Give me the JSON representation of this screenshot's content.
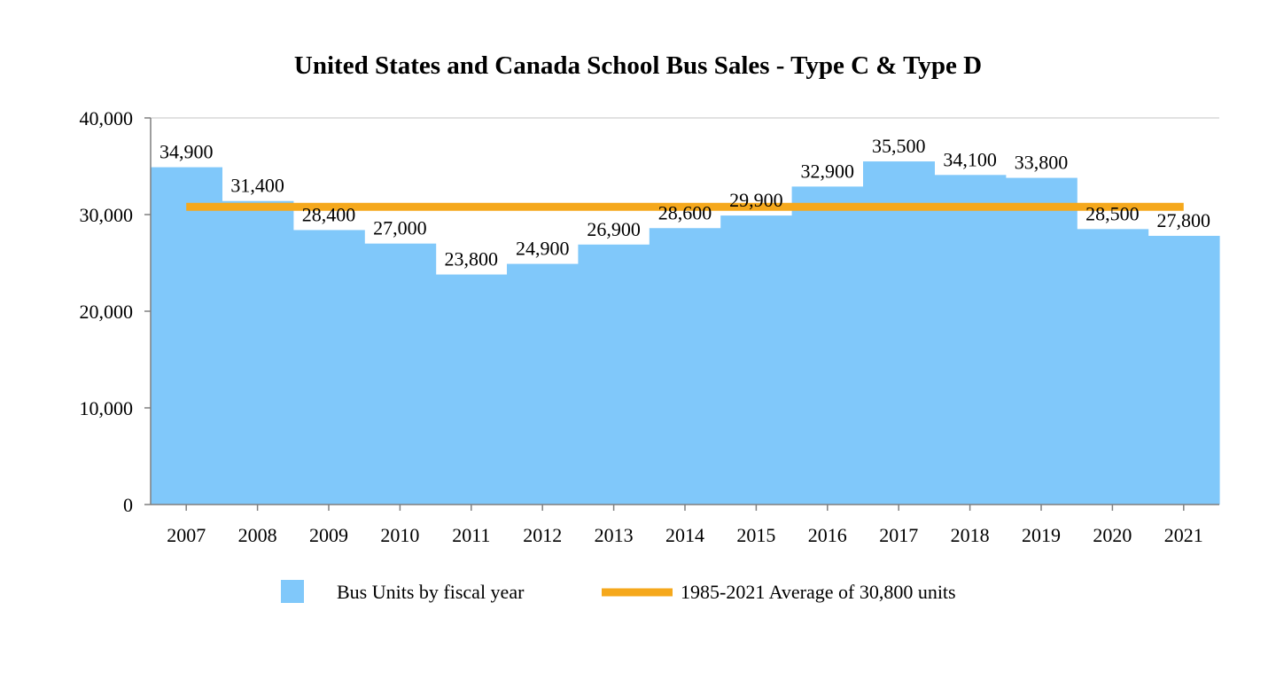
{
  "chart_data": {
    "type": "bar",
    "title": "United States and Canada School Bus Sales - Type C & Type D",
    "categories": [
      "2007",
      "2008",
      "2009",
      "2010",
      "2011",
      "2012",
      "2013",
      "2014",
      "2015",
      "2016",
      "2017",
      "2018",
      "2019",
      "2020",
      "2021"
    ],
    "series": [
      {
        "name": "Bus Units by fiscal year",
        "type": "bar",
        "color": "#80C8FA",
        "values": [
          34900,
          31400,
          28400,
          27000,
          23800,
          24900,
          26900,
          28600,
          29900,
          32900,
          35500,
          34100,
          33800,
          28500,
          27800
        ],
        "data_labels": [
          "34,900",
          "31,400",
          "28,400",
          "27,000",
          "23,800",
          "24,900",
          "26,900",
          "28,600",
          "29,900",
          "32,900",
          "35,500",
          "34,100",
          "33,800",
          "28,500",
          "27,800"
        ]
      },
      {
        "name": "1985-2021 Average of 30,800 units",
        "type": "line",
        "color": "#F5A81C",
        "value": 30800
      }
    ],
    "ylim": [
      0,
      40000
    ],
    "yticks": [
      0,
      10000,
      20000,
      30000,
      40000
    ],
    "ytick_labels": [
      "0",
      "10,000",
      "20,000",
      "30,000",
      "40,000"
    ],
    "xlabel": "",
    "ylabel": "",
    "grid": false,
    "legend_position": "bottom"
  }
}
